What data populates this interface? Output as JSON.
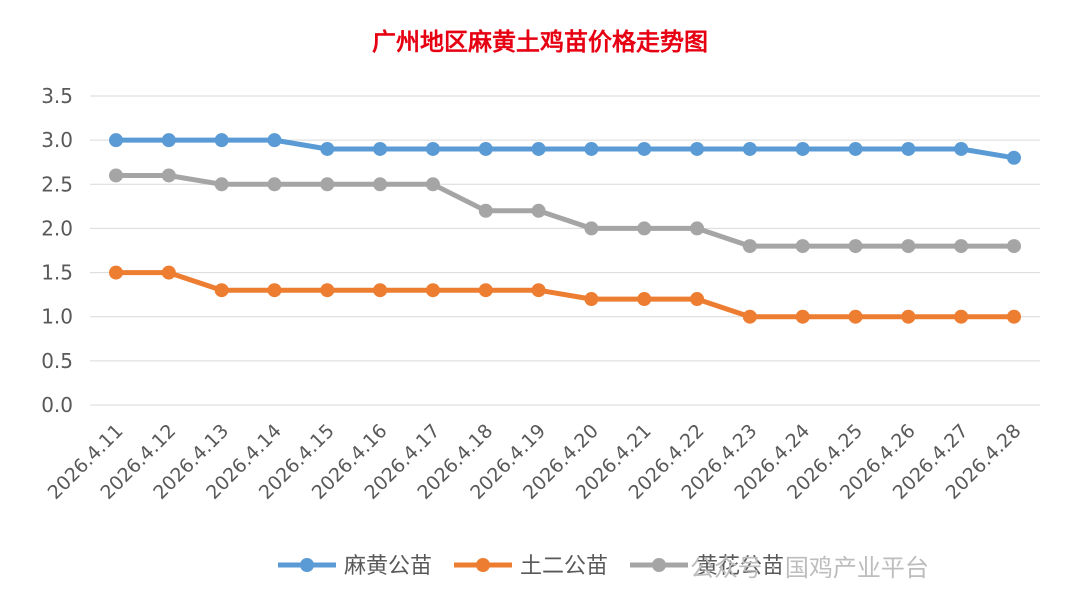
{
  "chart_data": {
    "type": "line",
    "title": "广州地区麻黄土鸡苗价格走势图",
    "categories": [
      "2026.4.11",
      "2026.4.12",
      "2026.4.13",
      "2026.4.14",
      "2026.4.15",
      "2026.4.16",
      "2026.4.17",
      "2026.4.18",
      "2026.4.19",
      "2026.4.20",
      "2026.4.21",
      "2026.4.22",
      "2026.4.23",
      "2026.4.24",
      "2026.4.25",
      "2026.4.26",
      "2026.4.27",
      "2026.4.28"
    ],
    "ylim": [
      0,
      3.5
    ],
    "yticks": [
      "0.0",
      "0.5",
      "1.0",
      "1.5",
      "2.0",
      "2.5",
      "3.0",
      "3.5"
    ],
    "grid": true,
    "legend_position": "bottom",
    "series": [
      {
        "name": "麻黄公苗",
        "color": "#5b9bd5",
        "values": [
          3.0,
          3.0,
          3.0,
          3.0,
          2.9,
          2.9,
          2.9,
          2.9,
          2.9,
          2.9,
          2.9,
          2.9,
          2.9,
          2.9,
          2.9,
          2.9,
          2.9,
          2.8
        ]
      },
      {
        "name": "土二公苗",
        "color": "#ed7d31",
        "values": [
          1.5,
          1.5,
          1.3,
          1.3,
          1.3,
          1.3,
          1.3,
          1.3,
          1.3,
          1.2,
          1.2,
          1.2,
          1.0,
          1.0,
          1.0,
          1.0,
          1.0,
          1.0
        ]
      },
      {
        "name": "黄花公苗",
        "color": "#a5a5a5",
        "values": [
          2.6,
          2.6,
          2.5,
          2.5,
          2.5,
          2.5,
          2.5,
          2.2,
          2.2,
          2.0,
          2.0,
          2.0,
          1.8,
          1.8,
          1.8,
          1.8,
          1.8,
          1.8
        ]
      }
    ]
  },
  "watermark": "公众号 · 国鸡产业平台"
}
